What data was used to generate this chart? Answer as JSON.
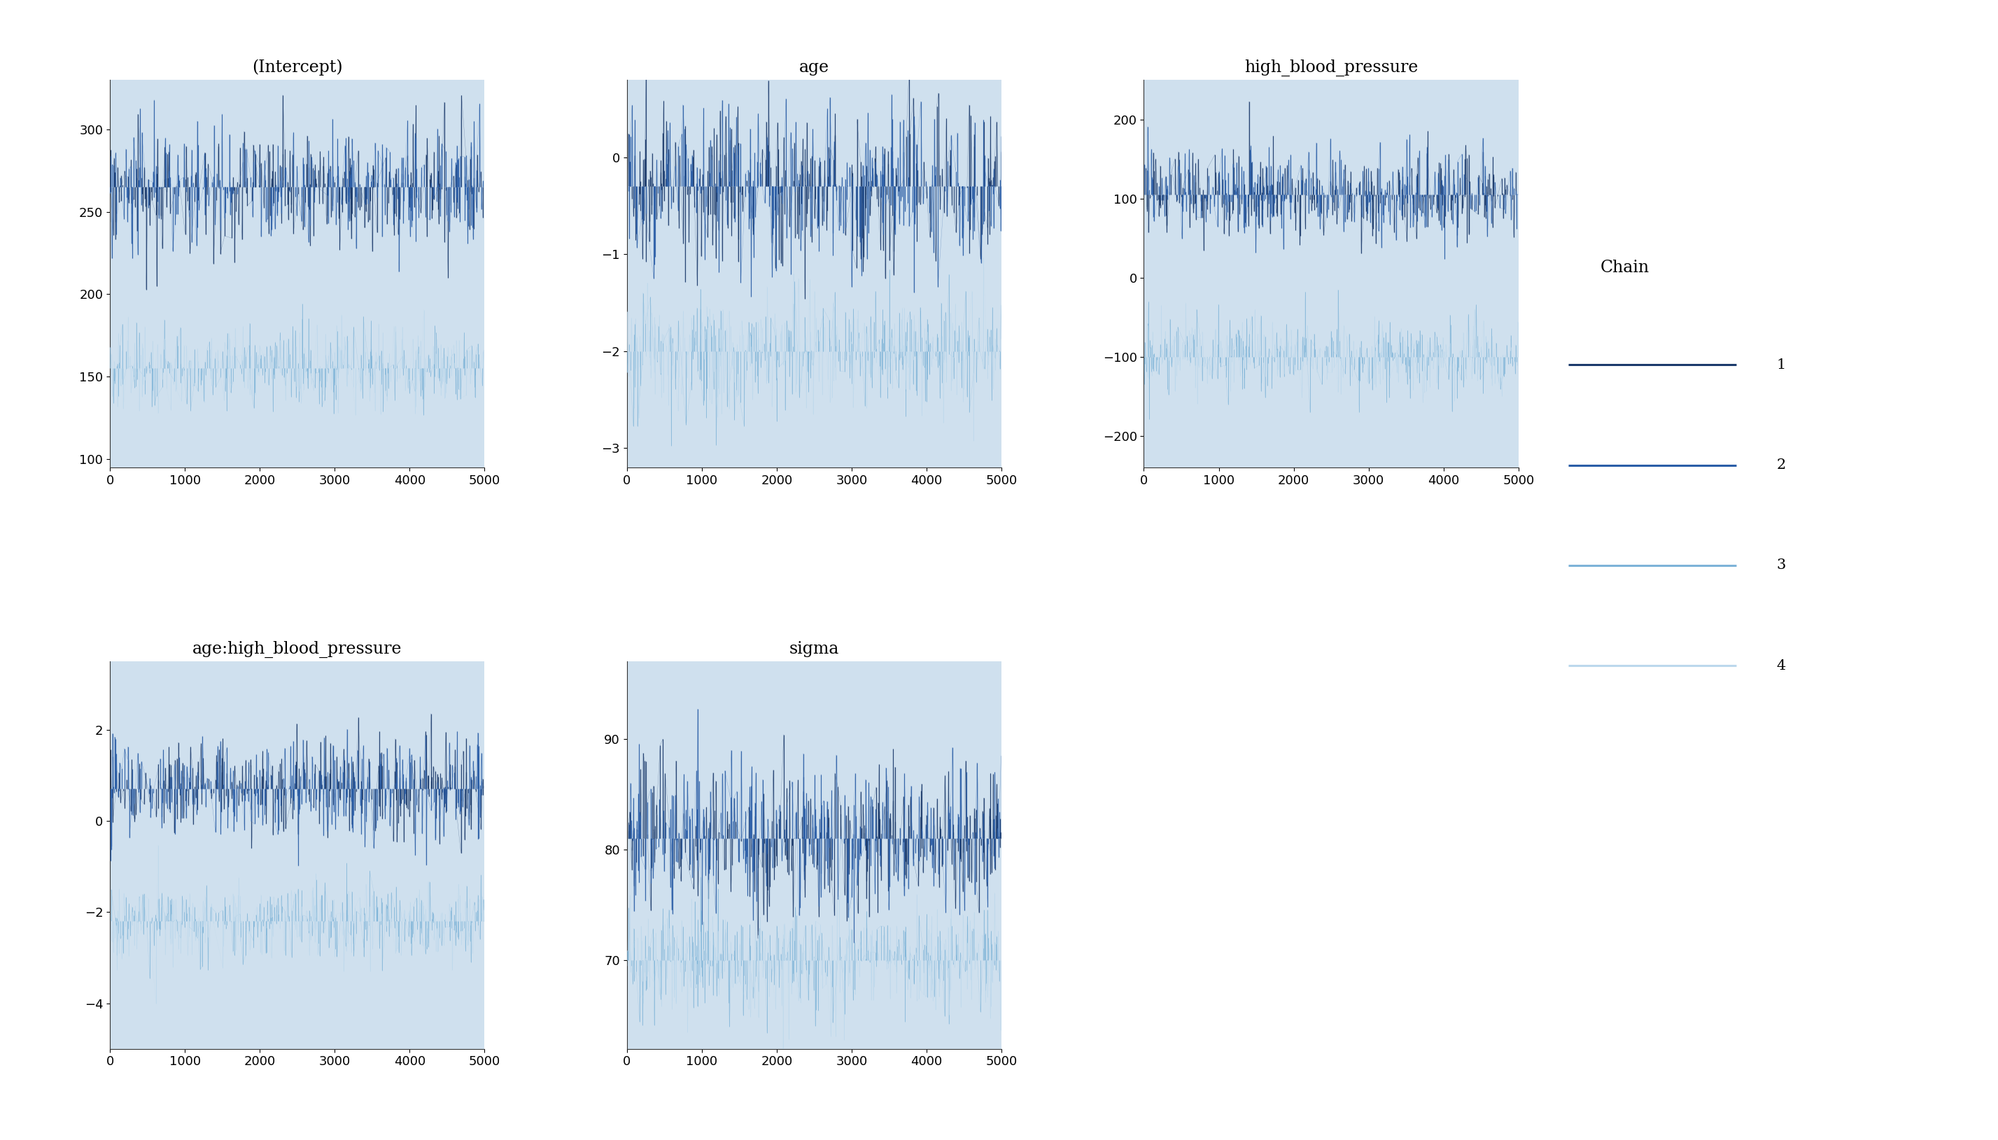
{
  "panels": [
    {
      "title": "(Intercept)",
      "row": 0,
      "col": 0,
      "chain_means": [
        265,
        265,
        155,
        155
      ],
      "chain_noise": [
        18,
        18,
        12,
        12
      ],
      "ylim": [
        95,
        330
      ],
      "yticks": [
        100,
        150,
        200,
        250,
        300
      ]
    },
    {
      "title": "age",
      "row": 0,
      "col": 1,
      "chain_means": [
        -0.3,
        -0.3,
        -2.0,
        -2.0
      ],
      "chain_noise": [
        0.42,
        0.42,
        0.3,
        0.3
      ],
      "ylim": [
        -3.2,
        0.8
      ],
      "yticks": [
        -3,
        -2,
        -1,
        0
      ]
    },
    {
      "title": "high_blood_pressure",
      "row": 0,
      "col": 2,
      "chain_means": [
        105,
        105,
        -100,
        -100
      ],
      "chain_noise": [
        28,
        28,
        22,
        22
      ],
      "ylim": [
        -240,
        250
      ],
      "yticks": [
        -200,
        -100,
        0,
        100,
        200
      ]
    },
    {
      "title": "age:high_blood_pressure",
      "row": 1,
      "col": 0,
      "chain_means": [
        0.7,
        0.7,
        -2.2,
        -2.2
      ],
      "chain_noise": [
        0.55,
        0.55,
        0.45,
        0.45
      ],
      "ylim": [
        -5.0,
        3.5
      ],
      "yticks": [
        -4,
        -2,
        0,
        2
      ]
    },
    {
      "title": "sigma",
      "row": 1,
      "col": 1,
      "chain_means": [
        81,
        81,
        70,
        70
      ],
      "chain_noise": [
        3.5,
        3.5,
        2.5,
        2.5
      ],
      "ylim": [
        62,
        97
      ],
      "yticks": [
        70,
        80,
        90
      ]
    }
  ],
  "n_iter": 5000,
  "n_samples": 300,
  "chain_colors": [
    "#1b3a6b",
    "#2b5ea7",
    "#7db3d8",
    "#bcd8ec"
  ],
  "chain_labels": [
    "1",
    "2",
    "3",
    "4"
  ],
  "bg_color": "#cfe0ee",
  "xticks": [
    0,
    1000,
    2000,
    3000,
    4000,
    5000
  ],
  "xlim": [
    0,
    5000
  ],
  "figure_bg": "#ffffff",
  "title_fontsize": 17,
  "tick_fontsize": 13,
  "legend_title_fontsize": 17,
  "legend_fontsize": 15
}
